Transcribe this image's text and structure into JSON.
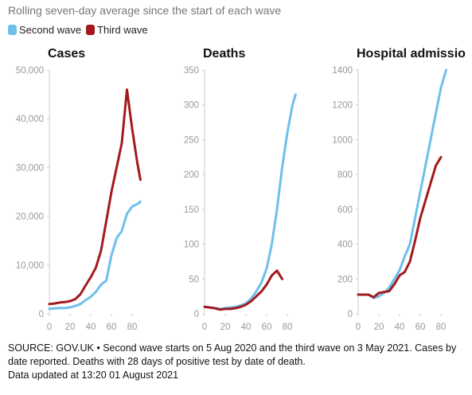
{
  "subtitle": "Rolling seven-day average since the start of each wave",
  "source": "SOURCE: GOV.UK • Second wave starts on 5 Aug 2020 and the third wave on 3 May 2021. Cases by date reported. Deaths with 28 days of positive test by date of death.",
  "updated": "Data updated at 13:20 01 August 2021",
  "chart_data": [
    {
      "type": "line",
      "title": "Cases",
      "x": [
        0,
        5,
        10,
        15,
        20,
        25,
        30,
        35,
        40,
        45,
        50,
        55,
        60,
        65,
        70,
        75,
        80,
        85,
        88
      ],
      "series": [
        {
          "name": "Second wave",
          "color": "#6ec0ea",
          "values": [
            1000,
            1100,
            1200,
            1200,
            1300,
            1600,
            2000,
            2800,
            3500,
            4500,
            6000,
            6800,
            12000,
            15500,
            17000,
            20500,
            22000,
            22500,
            23000
          ]
        },
        {
          "name": "Third wave",
          "color": "#a31a1e",
          "values": [
            2000,
            2100,
            2300,
            2400,
            2600,
            3000,
            4000,
            5800,
            7500,
            9500,
            13000,
            19000,
            25000,
            30000,
            35000,
            46000,
            38000,
            31000,
            27500
          ]
        }
      ],
      "xlim": [
        0,
        90
      ],
      "ylim": [
        0,
        50000
      ],
      "xticks": [
        0,
        20,
        40,
        60,
        80
      ],
      "yticks": [
        0,
        {
          "value": 10000,
          "label": "10,000"
        },
        {
          "value": 20000,
          "label": "20,000"
        },
        {
          "value": 30000,
          "label": "30,000"
        },
        {
          "value": 40000,
          "label": "40,000"
        },
        {
          "value": 50000,
          "label": "50,000"
        }
      ]
    },
    {
      "type": "line",
      "title": "Deaths",
      "x": [
        0,
        5,
        10,
        15,
        20,
        25,
        30,
        35,
        40,
        45,
        50,
        55,
        60,
        65,
        70,
        75,
        80,
        85,
        88
      ],
      "series": [
        {
          "name": "Second wave",
          "color": "#6ec0ea",
          "values": [
            10,
            9,
            8,
            7,
            8,
            9,
            10,
            12,
            15,
            22,
            32,
            45,
            65,
            100,
            150,
            210,
            260,
            300,
            315
          ]
        },
        {
          "name": "Third wave",
          "color": "#a31a1e",
          "values": [
            10,
            9,
            8,
            6,
            7,
            7,
            8,
            10,
            13,
            18,
            25,
            32,
            42,
            55,
            62,
            50,
            null,
            null,
            null
          ]
        }
      ],
      "xlim": [
        0,
        90
      ],
      "ylim": [
        0,
        350
      ],
      "xticks": [
        0,
        20,
        40,
        60,
        80
      ],
      "yticks": [
        0,
        50,
        100,
        150,
        200,
        250,
        300,
        350
      ]
    },
    {
      "type": "line",
      "title": "Hospital admissio",
      "x": [
        0,
        5,
        10,
        15,
        20,
        25,
        30,
        35,
        40,
        45,
        50,
        55,
        60,
        65,
        70,
        75,
        80,
        85,
        88
      ],
      "series": [
        {
          "name": "Second wave",
          "color": "#6ec0ea",
          "values": [
            110,
            110,
            110,
            90,
            100,
            120,
            150,
            200,
            250,
            330,
            400,
            550,
            700,
            850,
            1000,
            1150,
            1300,
            1400,
            null
          ]
        },
        {
          "name": "Third wave",
          "color": "#a31a1e",
          "values": [
            110,
            110,
            110,
            95,
            120,
            125,
            130,
            170,
            220,
            240,
            300,
            420,
            550,
            650,
            750,
            850,
            900,
            null,
            null
          ]
        }
      ],
      "xlim": [
        0,
        90
      ],
      "ylim": [
        0,
        1400
      ],
      "xticks": [
        0,
        20,
        40,
        60,
        80
      ],
      "yticks": [
        0,
        200,
        400,
        600,
        800,
        1000,
        1200,
        1400
      ]
    }
  ]
}
